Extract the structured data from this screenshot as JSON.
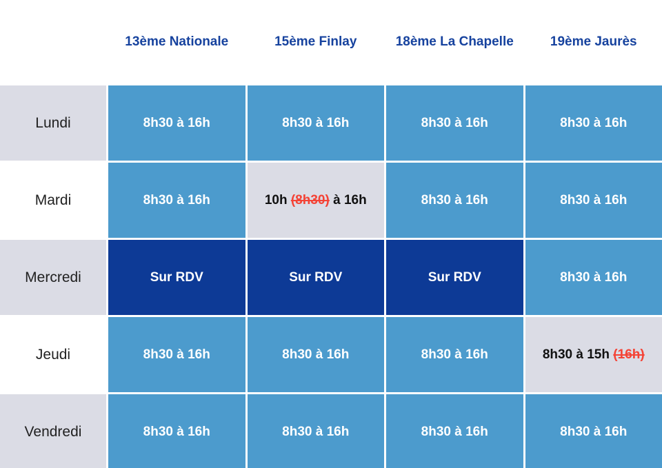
{
  "colors": {
    "header_text": "#16429E",
    "cell_blue": "#4C9BCD",
    "cell_navy": "#0D3A96",
    "cell_gray": "#DBDCE5",
    "strike_red": "#F44336",
    "day_text": "#212121",
    "cell_text": "#FFFFFF"
  },
  "table": {
    "columns": [
      {
        "label": "13ème Nationale"
      },
      {
        "label": "15ème Finlay"
      },
      {
        "label": "18ème La Chapelle"
      },
      {
        "label": "19ème Jaurès"
      }
    ],
    "rows": [
      {
        "day": "Lundi",
        "cells": [
          {
            "type": "hours",
            "text": "8h30 à 16h"
          },
          {
            "type": "hours",
            "text": "8h30 à 16h"
          },
          {
            "type": "hours",
            "text": "8h30 à 16h"
          },
          {
            "type": "hours",
            "text": "8h30 à 16h"
          }
        ]
      },
      {
        "day": "Mardi",
        "cells": [
          {
            "type": "hours",
            "text": "8h30 à 16h"
          },
          {
            "type": "modified",
            "prefix": "10h ",
            "struck": "(8h30)",
            "suffix": " à 16h"
          },
          {
            "type": "hours",
            "text": "8h30 à 16h"
          },
          {
            "type": "hours",
            "text": "8h30 à 16h"
          }
        ]
      },
      {
        "day": "Mercredi",
        "cells": [
          {
            "type": "rdv",
            "text": "Sur RDV"
          },
          {
            "type": "rdv",
            "text": "Sur RDV"
          },
          {
            "type": "rdv",
            "text": "Sur RDV"
          },
          {
            "type": "hours",
            "text": "8h30 à 16h"
          }
        ]
      },
      {
        "day": "Jeudi",
        "cells": [
          {
            "type": "hours",
            "text": "8h30 à 16h"
          },
          {
            "type": "hours",
            "text": "8h30 à 16h"
          },
          {
            "type": "hours",
            "text": "8h30 à 16h"
          },
          {
            "type": "modified",
            "prefix": "8h30 à 15h ",
            "struck": "(16h)",
            "suffix": ""
          }
        ]
      },
      {
        "day": "Vendredi",
        "cells": [
          {
            "type": "hours",
            "text": "8h30 à 16h"
          },
          {
            "type": "hours",
            "text": "8h30 à 16h"
          },
          {
            "type": "hours",
            "text": "8h30 à 16h"
          },
          {
            "type": "hours",
            "text": "8h30 à 16h"
          }
        ]
      }
    ]
  }
}
